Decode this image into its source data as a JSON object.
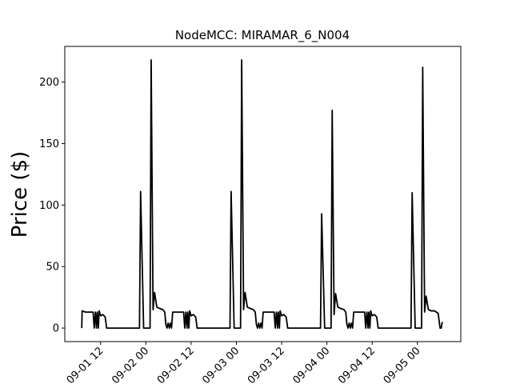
{
  "chart_data": {
    "type": "line",
    "title": "NodeMCC: MIRAMAR_6_N004",
    "y_label": "Price ($)",
    "color": "#000000",
    "x": [
      7.0,
      7.1,
      8,
      9,
      10,
      10.3,
      10.6,
      10.9,
      11.1,
      11.4,
      11.6,
      12,
      12.6,
      13.2,
      13.6,
      22.3,
      22.6,
      23.4,
      25.1,
      25.4,
      25.9,
      26.3,
      26.9,
      27.6,
      28.5,
      29,
      29.3,
      29.6,
      29.9,
      30.2,
      30.5,
      30.8,
      31.1,
      32,
      33,
      34,
      34.3,
      34.6,
      34.9,
      35.1,
      35.4,
      35.6,
      36,
      36.6,
      37.2,
      37.6,
      46.3,
      46.6,
      47.4,
      49.1,
      49.4,
      49.9,
      50.3,
      50.9,
      51.6,
      52.5,
      53,
      53.3,
      53.6,
      53.9,
      54.2,
      54.5,
      54.8,
      55.1,
      56,
      57,
      58,
      58.3,
      58.6,
      58.9,
      59.1,
      59.4,
      59.6,
      60,
      60.6,
      61.2,
      61.6,
      70.3,
      70.6,
      71.4,
      73.1,
      73.4,
      73.9,
      74.3,
      74.9,
      75.6,
      76.5,
      77,
      77.3,
      77.6,
      77.9,
      78.2,
      78.5,
      78.8,
      79.1,
      80,
      81,
      82,
      82.3,
      82.6,
      82.9,
      83.1,
      83.4,
      83.6,
      84,
      84.6,
      85.2,
      85.6,
      94.3,
      94.6,
      95.4,
      97.1,
      97.4,
      97.9,
      98.3,
      98.9,
      99.6,
      100.5,
      101.5,
      102,
      102.3,
      102.6
    ],
    "values": [
      0,
      14,
      13,
      13,
      13,
      0,
      13,
      0,
      13,
      0,
      14,
      10,
      11,
      9,
      0,
      0,
      111,
      0,
      0,
      218,
      15,
      29,
      17,
      16,
      15,
      13,
      3,
      0,
      4,
      0,
      4,
      0,
      13,
      13,
      13,
      13,
      0,
      13,
      0,
      13,
      0,
      14,
      10,
      11,
      9,
      0,
      0,
      111,
      0,
      0,
      218,
      15,
      29,
      17,
      16,
      15,
      13,
      3,
      0,
      4,
      0,
      4,
      0,
      13,
      13,
      13,
      13,
      0,
      13,
      0,
      13,
      0,
      14,
      10,
      11,
      9,
      0,
      0,
      93,
      0,
      0,
      177,
      11,
      28,
      17,
      16,
      15,
      13,
      3,
      0,
      4,
      0,
      4,
      0,
      13,
      13,
      13,
      13,
      0,
      13,
      0,
      13,
      0,
      14,
      10,
      11,
      9,
      0,
      0,
      110,
      0,
      0,
      212,
      13,
      26,
      15,
      14,
      14,
      12,
      0,
      0,
      5
    ],
    "xlim": [
      2.5,
      107.5
    ],
    "ylim": [
      -11,
      229
    ],
    "xticks": [
      {
        "value": 12,
        "label": "09-01 12"
      },
      {
        "value": 24,
        "label": "09-02 00"
      },
      {
        "value": 36,
        "label": "09-02 12"
      },
      {
        "value": 48,
        "label": "09-03 00"
      },
      {
        "value": 60,
        "label": "09-03 12"
      },
      {
        "value": 72,
        "label": "09-04 00"
      },
      {
        "value": 84,
        "label": "09-04 12"
      },
      {
        "value": 96,
        "label": "09-05 00"
      }
    ],
    "yticks": [
      0,
      50,
      100,
      150,
      200
    ]
  }
}
